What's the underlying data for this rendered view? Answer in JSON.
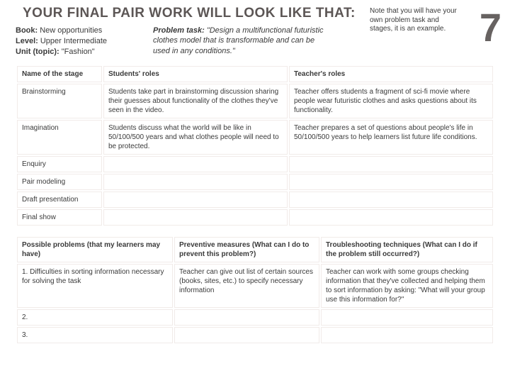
{
  "title": "YOUR FINAL PAIR WORK WILL LOOK LIKE THAT:",
  "page_number": "7",
  "meta": {
    "book_label": "Book:",
    "book_value": "New opportunities",
    "level_label": "Level:",
    "level_value": "Upper Intermediate",
    "unit_label": "Unit (topic):",
    "unit_value": "\"Fashion\"",
    "problem_label": "Problem task:",
    "problem_value": "\"Design a multifunctional futuristic clothes model that is transformable and can be used in any conditions.\"",
    "note": "Note that you will have your own problem task and stages, it is an example."
  },
  "table1": {
    "headers": [
      "Name of the stage",
      "Students' roles",
      "Teacher's roles"
    ],
    "rows": [
      {
        "stage": "Brainstorming",
        "students": "Students take part in brainstorming discussion sharing their guesses about functionality of the clothes they've seen in the video.",
        "teacher": "Teacher offers students a fragment of sci-fi movie where people wear futuristic clothes and asks questions about its functionality."
      },
      {
        "stage": "Imagination",
        "students": "Students discuss what the world will be like in 50/100/500 years and what clothes people will need to be protected.",
        "teacher": "Teacher prepares a set of questions about people's life in 50/100/500 years to help learners list future life conditions."
      },
      {
        "stage": "Enquiry",
        "students": "",
        "teacher": ""
      },
      {
        "stage": "Pair modeling",
        "students": "",
        "teacher": ""
      },
      {
        "stage": "Draft presentation",
        "students": "",
        "teacher": ""
      },
      {
        "stage": "Final show",
        "students": "",
        "teacher": ""
      }
    ]
  },
  "table2": {
    "headers": [
      "Possible problems (that my learners may have)",
      "Preventive measures (What can I do to prevent this problem?)",
      "Troubleshooting techniques (What can I do if the problem still occurred?)"
    ],
    "rows": [
      {
        "problem": "1. Difficulties in sorting information necessary for solving the task",
        "preventive": "Teacher can give out list of certain sources (books, sites, etc.) to specify necessary information",
        "troubleshoot": "Teacher can work with some groups checking information that they've collected and helping them to sort information by asking: \"What will your group use this information for?\""
      },
      {
        "problem": "2.",
        "preventive": "",
        "troubleshoot": ""
      },
      {
        "problem": "3.",
        "preventive": "",
        "troubleshoot": ""
      }
    ]
  }
}
